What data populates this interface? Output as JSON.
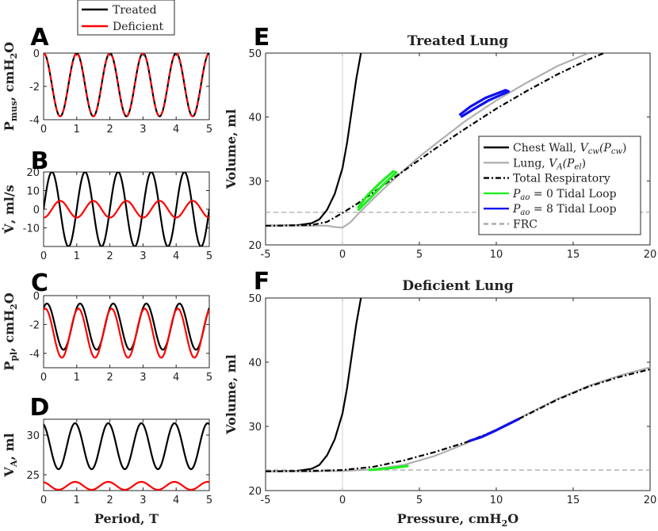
{
  "chart_data": [
    {
      "id": "A",
      "type": "line",
      "panel_letter": "A",
      "xlim": [
        0,
        5
      ],
      "ylim": [
        -4,
        0
      ],
      "xticks": [
        "0",
        "1",
        "2",
        "3",
        "4",
        "5"
      ],
      "yticks": [
        "-4",
        "-2",
        "0"
      ],
      "ylabel": "P_mus, cmH2O",
      "ylabel_main": "P",
      "ylabel_sub": "mus",
      "ylabel_unit": ", cmH",
      "ylabel_unit_sub": "2",
      "ylabel_unit_end": "O",
      "series": [
        {
          "name": "Treated",
          "color": "#000000",
          "dash": "solid",
          "mean": -1.9,
          "amp": 1.9,
          "phase": 0
        },
        {
          "name": "Deficient",
          "color": "#ff0000",
          "dash": "dashed",
          "mean": -1.9,
          "amp": 1.9,
          "phase": 0
        }
      ]
    },
    {
      "id": "B",
      "type": "line",
      "panel_letter": "B",
      "xlim": [
        0,
        5
      ],
      "ylim": [
        -20,
        20
      ],
      "xticks": [
        "0",
        "1",
        "2",
        "3",
        "4",
        "5"
      ],
      "yticks": [
        "-10",
        "0",
        "10",
        "20"
      ],
      "ylabel": "V̇, ml/s",
      "ylabel_main": "V̇, ml/s",
      "series": [
        {
          "name": "Treated",
          "color": "#000000",
          "mean": 0,
          "amp": 20,
          "phase": 0.25
        },
        {
          "name": "Deficient",
          "color": "#ff0000",
          "mean": 0,
          "amp": 4.5,
          "phase": 0.5
        }
      ]
    },
    {
      "id": "C",
      "type": "line",
      "panel_letter": "C",
      "xlim": [
        0,
        5
      ],
      "ylim": [
        -5,
        0
      ],
      "xticks": [
        "0",
        "1",
        "2",
        "3",
        "4",
        "5"
      ],
      "yticks": [
        "-4",
        "-2",
        "0"
      ],
      "ylabel": "P_pl, cmH2O",
      "ylabel_main": "P",
      "ylabel_sub": "pl",
      "ylabel_unit": ", cmH",
      "ylabel_unit_sub": "2",
      "ylabel_unit_end": "O",
      "series": [
        {
          "name": "Treated",
          "color": "#000000",
          "mean": -2.15,
          "amp": 1.6,
          "phase": 0.1
        },
        {
          "name": "Deficient",
          "color": "#ff0000",
          "mean": -2.6,
          "amp": 1.7,
          "phase": 0.05
        }
      ]
    },
    {
      "id": "D",
      "type": "line",
      "panel_letter": "D",
      "xlim": [
        0,
        5
      ],
      "ylim": [
        23,
        32
      ],
      "xticks": [
        "0",
        "1",
        "2",
        "3",
        "4",
        "5"
      ],
      "yticks": [
        "25",
        "30"
      ],
      "ylabel": "V_A, ml",
      "ylabel_main": "V",
      "ylabel_sub": "A",
      "ylabel_unit": ", ml",
      "xlabel": "Period, T",
      "series": [
        {
          "name": "Treated",
          "color": "#000000",
          "mean": 28.6,
          "amp": 2.9,
          "phase": -0.05
        },
        {
          "name": "Deficient",
          "color": "#ff0000",
          "mean": 23.6,
          "amp": 0.5,
          "phase": -0.05
        }
      ]
    },
    {
      "id": "E",
      "type": "line",
      "panel_letter": "E",
      "title": "Treated Lung",
      "xlim": [
        -5,
        20
      ],
      "ylim": [
        20,
        50
      ],
      "xticks": [
        "-5",
        "0",
        "5",
        "10",
        "15",
        "20"
      ],
      "yticks": [
        "20",
        "30",
        "40",
        "50"
      ],
      "ylabel": "Volume, ml",
      "frc": 25.1,
      "series": [
        {
          "name": "Chest Wall",
          "color": "#000000",
          "points": [
            [
              -5,
              23
            ],
            [
              -3,
              23.05
            ],
            [
              -2,
              23.4
            ],
            [
              -1.5,
              24
            ],
            [
              -1,
              25.5
            ],
            [
              -0.5,
              28
            ],
            [
              0,
              32
            ],
            [
              0.3,
              36
            ],
            [
              0.6,
              41
            ],
            [
              0.9,
              46
            ],
            [
              1.2,
              50
            ]
          ]
        },
        {
          "name": "Lung",
          "color": "#b0b0b0",
          "points": [
            [
              -5,
              23
            ],
            [
              -2,
              23
            ],
            [
              -1,
              23
            ],
            [
              -0.5,
              22.8
            ],
            [
              0,
              22.7
            ],
            [
              0.5,
              23.5
            ],
            [
              1,
              24.8
            ],
            [
              2,
              27.2
            ],
            [
              3,
              29.5
            ],
            [
              4,
              31.7
            ],
            [
              5,
              33.8
            ],
            [
              6,
              35.7
            ],
            [
              8,
              39.4
            ],
            [
              10,
              42.6
            ],
            [
              12,
              45.4
            ],
            [
              14,
              48
            ],
            [
              16,
              50
            ]
          ]
        },
        {
          "name": "Total Respiratory",
          "color": "#000000",
          "dash": "dashdot",
          "points": [
            [
              -5,
              23
            ],
            [
              -2,
              23.1
            ],
            [
              -1,
              23.6
            ],
            [
              0,
              25
            ],
            [
              1,
              26.5
            ],
            [
              2,
              28.2
            ],
            [
              3,
              29.9
            ],
            [
              4,
              31.6
            ],
            [
              5,
              33.3
            ],
            [
              6,
              35
            ],
            [
              8,
              38.2
            ],
            [
              10,
              41.3
            ],
            [
              12,
              44.1
            ],
            [
              14,
              46.7
            ],
            [
              16,
              49
            ],
            [
              17,
              50
            ]
          ]
        },
        {
          "name": "Pao 0 Tidal Loop",
          "color": "#22ee22",
          "points": [
            [
              1,
              25.4
            ],
            [
              1.8,
              27.3
            ],
            [
              2.6,
              29.3
            ],
            [
              3.5,
              31.3
            ],
            [
              3.3,
              31.5
            ],
            [
              2.4,
              29.6
            ],
            [
              1.6,
              27.7
            ],
            [
              1,
              25.8
            ]
          ]
        },
        {
          "name": "Pao 8 Tidal Loop",
          "color": "#1010ee",
          "points": [
            [
              7.7,
              40
            ],
            [
              8.5,
              41.2
            ],
            [
              9.5,
              42.6
            ],
            [
              10.8,
              44
            ],
            [
              10.6,
              44.2
            ],
            [
              9.3,
              43
            ],
            [
              8.3,
              41.6
            ],
            [
              7.6,
              40.3
            ]
          ]
        }
      ],
      "legend": [
        {
          "label": "Chest Wall, ",
          "math": "V",
          "math_sub": "cw",
          "math_mid": "(P",
          "math_sub2": "cw",
          "math_end": ")",
          "color": "#000000",
          "dash": "solid"
        },
        {
          "label": "Lung, ",
          "math": "V",
          "math_sub": "A",
          "math_mid": "(P",
          "math_sub2": "el",
          "math_end": ")",
          "color": "#b0b0b0",
          "dash": "solid"
        },
        {
          "label": "Total Respiratory",
          "color": "#000000",
          "dash": "dashdot"
        },
        {
          "label": " = 0 Tidal Loop",
          "math": "P",
          "math_sub": "ao",
          "color": "#22ee22",
          "dash": "solid",
          "math_first": true
        },
        {
          "label": " = 8 Tidal Loop",
          "math": "P",
          "math_sub": "ao",
          "color": "#1010ee",
          "dash": "solid",
          "math_first": true
        },
        {
          "label": "FRC",
          "color": "#aaaaaa",
          "dash": "dashed"
        }
      ]
    },
    {
      "id": "F",
      "type": "line",
      "panel_letter": "F",
      "title": "Deficient Lung",
      "xlim": [
        -5,
        20
      ],
      "ylim": [
        20,
        50
      ],
      "xticks": [
        "-5",
        "0",
        "5",
        "10",
        "15",
        "20"
      ],
      "yticks": [
        "20",
        "30",
        "40",
        "50"
      ],
      "xlabel": "Pressure, cmH2O",
      "xlabel_text": "Pressure, cmH",
      "xlabel_sub": "2",
      "xlabel_end": "O",
      "ylabel": "Volume, ml",
      "frc": 23.2,
      "series": [
        {
          "name": "Chest Wall",
          "color": "#000000",
          "points": [
            [
              -5,
              23
            ],
            [
              -3,
              23.05
            ],
            [
              -2,
              23.4
            ],
            [
              -1.5,
              24
            ],
            [
              -1,
              25.5
            ],
            [
              -0.5,
              28
            ],
            [
              0,
              32
            ],
            [
              0.3,
              36
            ],
            [
              0.6,
              41
            ],
            [
              0.9,
              46
            ],
            [
              1.2,
              50
            ]
          ]
        },
        {
          "name": "Lung",
          "color": "#b0b0b0",
          "points": [
            [
              -5,
              23
            ],
            [
              -2,
              23
            ],
            [
              0,
              23.05
            ],
            [
              2,
              23.3
            ],
            [
              4,
              24
            ],
            [
              6,
              25.4
            ],
            [
              8,
              27.3
            ],
            [
              10,
              29.5
            ],
            [
              12,
              31.9
            ],
            [
              14,
              34.3
            ],
            [
              16,
              36.3
            ],
            [
              18,
              37.9
            ],
            [
              20,
              39.2
            ]
          ]
        },
        {
          "name": "Total Respiratory",
          "color": "#000000",
          "dash": "dashdot",
          "points": [
            [
              -5,
              23
            ],
            [
              -2,
              23.05
            ],
            [
              0,
              23.2
            ],
            [
              2,
              23.7
            ],
            [
              4,
              24.7
            ],
            [
              6,
              26
            ],
            [
              8,
              27.5
            ],
            [
              10,
              29.4
            ],
            [
              12,
              31.8
            ],
            [
              14,
              34.2
            ],
            [
              16,
              36.2
            ],
            [
              18,
              37.7
            ],
            [
              20,
              38.9
            ]
          ]
        },
        {
          "name": "Pao 0 Tidal Loop",
          "color": "#22ee22",
          "points": [
            [
              1.7,
              23.2
            ],
            [
              2.5,
              23.35
            ],
            [
              3.5,
              23.6
            ],
            [
              4.3,
              23.85
            ]
          ]
        },
        {
          "name": "Pao 8 Tidal Loop",
          "color": "#1010ee",
          "points": [
            [
              8.2,
              27.7
            ],
            [
              9,
              28.3
            ],
            [
              10,
              29.4
            ],
            [
              11,
              30.6
            ],
            [
              11.5,
              31.2
            ]
          ]
        }
      ]
    }
  ]
}
